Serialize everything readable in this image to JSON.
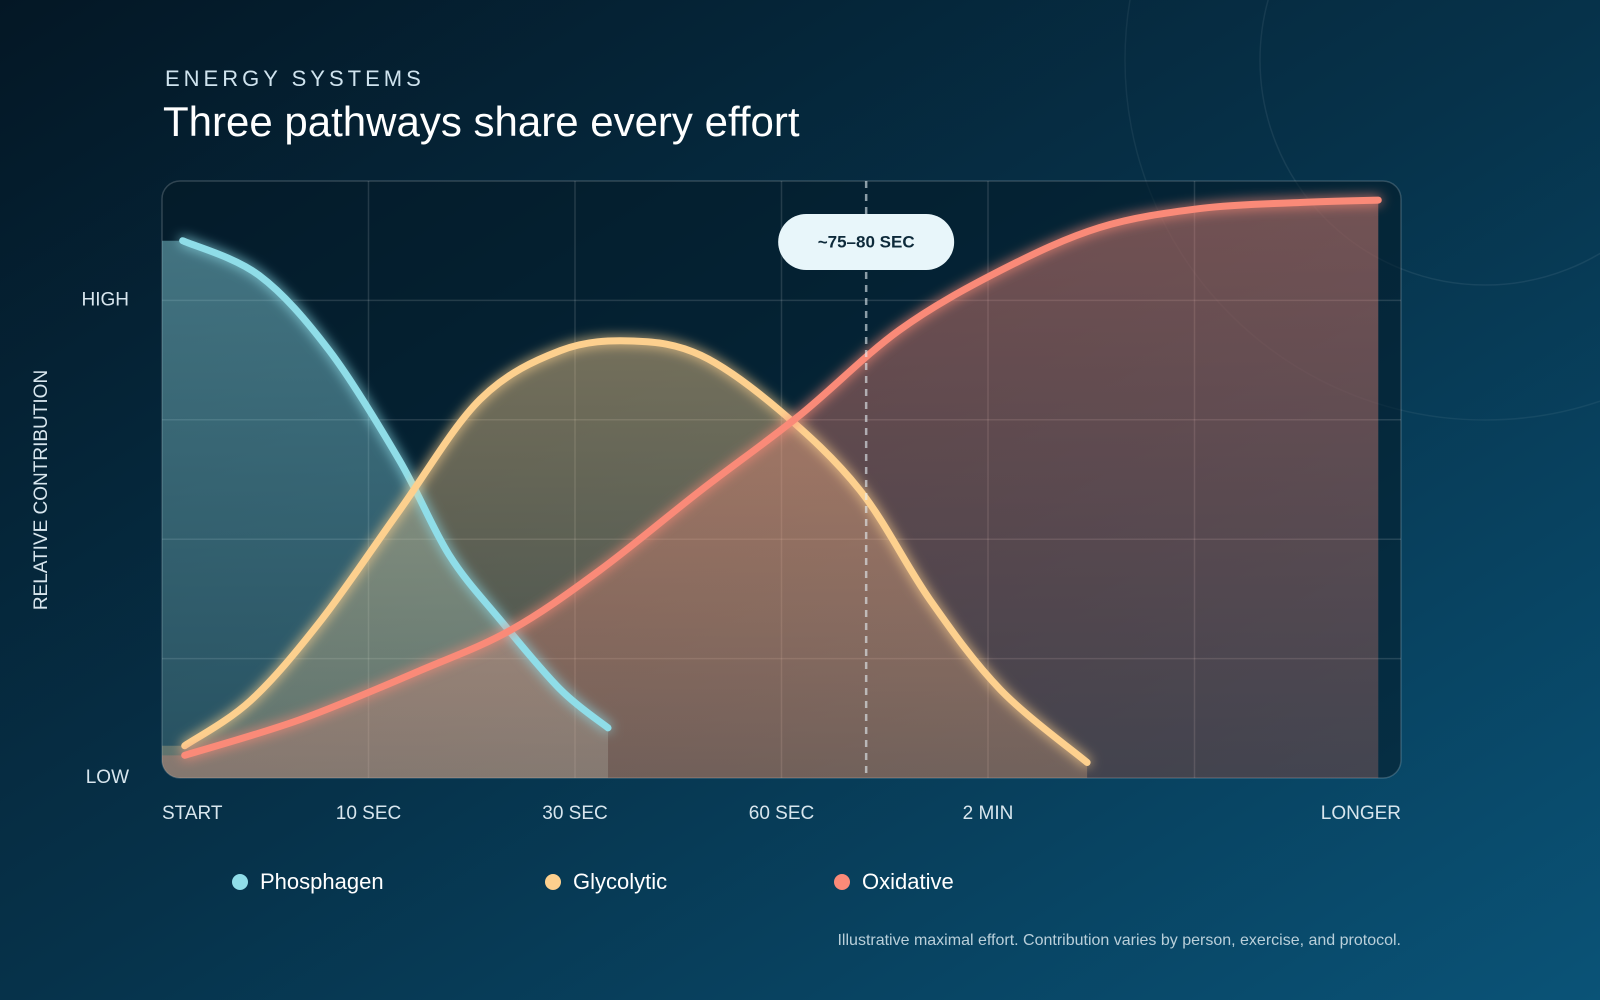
{
  "chart_data": {
    "type": "line",
    "eyebrow": "ENERGY SYSTEMS",
    "title": "Three pathways share every effort",
    "y_label": "RELATIVE CONTRIBUTION",
    "footnote": "Illustrative maximal effort. Contribution varies by person, exercise, and protocol.",
    "xlim": [
      0,
      6
    ],
    "xticks": [
      {
        "value": 0,
        "label": "START"
      },
      {
        "value": 1,
        "label": "10 SEC"
      },
      {
        "value": 2,
        "label": "30 SEC"
      },
      {
        "value": 3,
        "label": "60 SEC"
      },
      {
        "value": 4,
        "label": "2 MIN"
      },
      {
        "value": 5,
        "label": null
      },
      {
        "value": 6,
        "label": "LONGER"
      }
    ],
    "ylim": [
      0,
      5
    ],
    "yticks": [
      {
        "value": 0,
        "label": "LOW"
      },
      {
        "value": 1,
        "label": null
      },
      {
        "value": 2,
        "label": null
      },
      {
        "value": 3,
        "label": null
      },
      {
        "value": 4,
        "label": "HIGH"
      }
    ],
    "grid": true,
    "annotation": {
      "text": "~75–80 SEC",
      "x": 3.41
    },
    "series": [
      {
        "name": "Phosphagen",
        "color": "#8fdde8",
        "x": [
          0.1,
          0.47,
          0.81,
          1.15,
          1.39,
          1.64,
          1.93,
          2.16
        ],
        "values": [
          4.5,
          4.21,
          3.58,
          2.66,
          1.87,
          1.32,
          0.74,
          0.42
        ]
      },
      {
        "name": "Glycolytic",
        "color": "#fdd08e",
        "x": [
          0.11,
          0.43,
          0.77,
          1.15,
          1.54,
          1.93,
          2.28,
          2.61,
          2.99,
          3.38,
          3.72,
          4.06,
          4.48
        ],
        "values": [
          0.27,
          0.65,
          1.32,
          2.24,
          3.17,
          3.58,
          3.66,
          3.54,
          3.08,
          2.41,
          1.49,
          0.74,
          0.13
        ]
      },
      {
        "name": "Oxidative",
        "color": "#fa8a78",
        "x": [
          0.11,
          0.67,
          1.25,
          1.69,
          2.12,
          2.61,
          3.09,
          3.57,
          4.06,
          4.54,
          5.03,
          5.51,
          5.89
        ],
        "values": [
          0.19,
          0.49,
          0.9,
          1.24,
          1.74,
          2.41,
          3.04,
          3.75,
          4.25,
          4.61,
          4.77,
          4.82,
          4.84
        ]
      }
    ]
  }
}
